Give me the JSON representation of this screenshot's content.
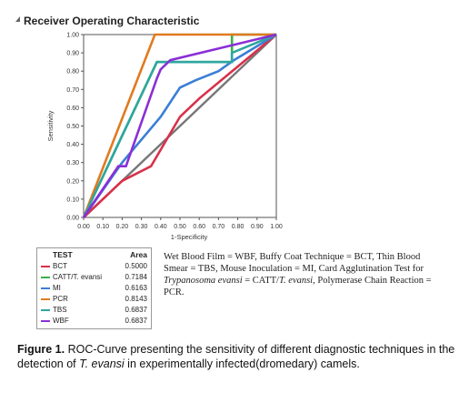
{
  "panel": {
    "title": "Receiver Operating Characteristic"
  },
  "chart_data": {
    "type": "line",
    "title": "Receiver Operating Characteristic",
    "xlabel": "1-Specificity",
    "ylabel": "Sensitivity",
    "xlim": [
      0,
      1
    ],
    "ylim": [
      0,
      1
    ],
    "x_ticks": [
      "0.00",
      "0.10",
      "0.20",
      "0.30",
      "0.40",
      "0.50",
      "0.60",
      "0.70",
      "0.80",
      "0.90",
      "1.00"
    ],
    "y_ticks": [
      "0.00",
      "0.10",
      "0.20",
      "0.30",
      "0.40",
      "0.50",
      "0.60",
      "0.70",
      "0.80",
      "0.90",
      "1.00"
    ],
    "grid": false,
    "series": [
      {
        "name": "BCT",
        "area": "0.5000",
        "color": "#d9304a",
        "points": [
          [
            0,
            0
          ],
          [
            0.2,
            0.2
          ],
          [
            0.35,
            0.28
          ],
          [
            0.5,
            0.55
          ],
          [
            0.6,
            0.65
          ],
          [
            1,
            1
          ]
        ]
      },
      {
        "name": "CATT/T. evansi",
        "area": "0.7184",
        "color": "#3cb04a",
        "points": [
          [
            0,
            0
          ],
          [
            0.38,
            0.85
          ],
          [
            0.77,
            0.85
          ],
          [
            0.77,
            1
          ],
          [
            1,
            1
          ]
        ]
      },
      {
        "name": "MI",
        "area": "0.6163",
        "color": "#3b7fd6",
        "points": [
          [
            0,
            0
          ],
          [
            0.2,
            0.3
          ],
          [
            0.4,
            0.55
          ],
          [
            0.5,
            0.71
          ],
          [
            0.58,
            0.75
          ],
          [
            0.7,
            0.8
          ],
          [
            0.78,
            0.86
          ],
          [
            1,
            1
          ]
        ]
      },
      {
        "name": "PCR",
        "area": "0.8143",
        "color": "#e07a1f",
        "points": [
          [
            0,
            0
          ],
          [
            0.37,
            1
          ],
          [
            1,
            1
          ]
        ]
      },
      {
        "name": "TBS",
        "area": "0.6837",
        "color": "#2fa6a0",
        "points": [
          [
            0,
            0
          ],
          [
            0.38,
            0.85
          ],
          [
            0.77,
            0.85
          ],
          [
            0.77,
            0.9
          ],
          [
            1,
            1
          ]
        ]
      },
      {
        "name": "WBF",
        "area": "0.6837",
        "color": "#8a2fd6",
        "points": [
          [
            0,
            0
          ],
          [
            0.18,
            0.28
          ],
          [
            0.22,
            0.28
          ],
          [
            0.38,
            0.76
          ],
          [
            0.4,
            0.81
          ],
          [
            0.45,
            0.86
          ],
          [
            1,
            1
          ]
        ]
      }
    ],
    "reference_line": {
      "color": "#777777",
      "points": [
        [
          0,
          0
        ],
        [
          1,
          1
        ]
      ]
    },
    "legend": {
      "placement": "below-left",
      "header_test": "TEST",
      "header_area": "Area"
    }
  },
  "note": "Wet Blood Film = WBF, Buffy Coat Technique = BCT, Thin Blood Smear = TBS, Mouse Inoculation = MI, Card Agglutination Test for Trypanosoma evansi = CATT/T. evansi, Polymerase Chain Reaction = PCR.",
  "note_parts": {
    "a": "Wet Blood Film = WBF, Buffy Coat Technique = BCT, Thin Blood Smear = TBS, Mouse Inoculation = MI, Card Agglutination Test for ",
    "b": "Trypanosoma evansi",
    "c": " = CATT/",
    "d": "T. evansi",
    "e": ", Polymerase Chain Reaction = PCR."
  },
  "caption": {
    "label": "Figure 1.",
    "text_a": " ROC-Curve presenting the sensitivity of different diagnostic techniques in the detection of ",
    "text_b": "T. evansi",
    "text_c": " in experimentally infected(dromedary) camels."
  }
}
